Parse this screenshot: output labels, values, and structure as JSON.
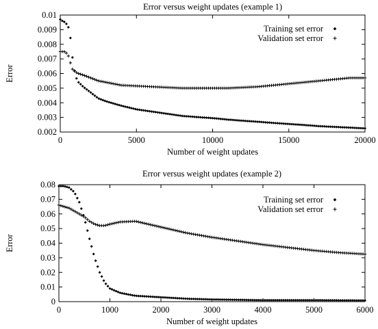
{
  "chart_data": [
    {
      "type": "scatter",
      "title": "Error versus weight updates (example 1)",
      "xlabel": "Number of weight updates",
      "ylabel": "Error",
      "xlim": [
        0,
        20000
      ],
      "ylim": [
        0.002,
        0.01
      ],
      "xticks": [
        0,
        5000,
        10000,
        15000,
        20000
      ],
      "yticks": [
        0.002,
        0.003,
        0.004,
        0.005,
        0.006,
        0.007,
        0.008,
        0.009,
        0.01
      ],
      "xtick_labels": [
        "0",
        "5000",
        "10000",
        "15000",
        "20000"
      ],
      "ytick_labels": [
        "0.002",
        "0.003",
        "0.004",
        "0.005",
        "0.006",
        "0.007",
        "0.008",
        "0.009",
        "0.01"
      ],
      "legend_position": "top-right",
      "series": [
        {
          "name": "Training set error",
          "marker": "diamond",
          "x": [
            0,
            100,
            200,
            300,
            400,
            500,
            600,
            700,
            800,
            900,
            1000,
            1200,
            1500,
            2000,
            2500,
            3000,
            4000,
            5000,
            6000,
            7000,
            8000,
            9000,
            10000,
            11000,
            12000,
            13000,
            14000,
            15000,
            16000,
            17000,
            18000,
            19000,
            20000
          ],
          "y": [
            0.0097,
            0.0096,
            0.0096,
            0.0095,
            0.0094,
            0.0093,
            0.0089,
            0.0082,
            0.0071,
            0.0064,
            0.0058,
            0.0054,
            0.0051,
            0.0047,
            0.0043,
            0.0041,
            0.0038,
            0.00355,
            0.0034,
            0.00325,
            0.0031,
            0.00302,
            0.00295,
            0.00285,
            0.00277,
            0.0027,
            0.00262,
            0.00255,
            0.00248,
            0.0024,
            0.00235,
            0.0023,
            0.00225
          ]
        },
        {
          "name": "Validation set error",
          "marker": "plus",
          "x": [
            0,
            100,
            200,
            300,
            400,
            500,
            600,
            700,
            800,
            900,
            1000,
            1200,
            1500,
            2000,
            2500,
            3000,
            4000,
            5000,
            6000,
            7000,
            8000,
            9000,
            10000,
            11000,
            12000,
            13000,
            14000,
            15000,
            16000,
            17000,
            18000,
            19000,
            20000
          ],
          "y": [
            0.0075,
            0.0075,
            0.0075,
            0.0075,
            0.0074,
            0.0073,
            0.007,
            0.0066,
            0.0063,
            0.0062,
            0.0061,
            0.006,
            0.0059,
            0.0057,
            0.0055,
            0.0054,
            0.0052,
            0.00515,
            0.0051,
            0.00505,
            0.005,
            0.005,
            0.005,
            0.005,
            0.00505,
            0.0051,
            0.0052,
            0.0053,
            0.0054,
            0.0055,
            0.0056,
            0.0057,
            0.0057
          ]
        }
      ]
    },
    {
      "type": "scatter",
      "title": "Error versus weight updates (example 2)",
      "xlabel": "Number of weight updates",
      "ylabel": "Error",
      "xlim": [
        0,
        6000
      ],
      "ylim": [
        0,
        0.08
      ],
      "xticks": [
        0,
        1000,
        2000,
        3000,
        4000,
        5000,
        6000
      ],
      "yticks": [
        0,
        0.01,
        0.02,
        0.03,
        0.04,
        0.05,
        0.06,
        0.07,
        0.08
      ],
      "xtick_labels": [
        "0",
        "1000",
        "2000",
        "3000",
        "4000",
        "5000",
        "6000"
      ],
      "ytick_labels": [
        "0",
        "0.01",
        "0.02",
        "0.03",
        "0.04",
        "0.05",
        "0.06",
        "0.07",
        "0.08"
      ],
      "legend_position": "top-right",
      "series": [
        {
          "name": "Training set error",
          "marker": "diamond",
          "x": [
            0,
            100,
            200,
            300,
            400,
            500,
            600,
            700,
            800,
            900,
            1000,
            1200,
            1500,
            2000,
            2500,
            3000,
            4000,
            5000,
            6000
          ],
          "y": [
            0.079,
            0.079,
            0.078,
            0.075,
            0.068,
            0.057,
            0.043,
            0.03,
            0.02,
            0.013,
            0.009,
            0.006,
            0.004,
            0.003,
            0.002,
            0.0015,
            0.001,
            0.001,
            0.0008
          ]
        },
        {
          "name": "Validation set error",
          "marker": "plus",
          "x": [
            0,
            100,
            200,
            300,
            400,
            500,
            600,
            700,
            800,
            900,
            1000,
            1200,
            1500,
            2000,
            2500,
            3000,
            3500,
            4000,
            4500,
            5000,
            5500,
            6000
          ],
          "y": [
            0.066,
            0.065,
            0.064,
            0.062,
            0.06,
            0.058,
            0.055,
            0.053,
            0.052,
            0.052,
            0.053,
            0.0545,
            0.055,
            0.051,
            0.047,
            0.044,
            0.0415,
            0.039,
            0.037,
            0.035,
            0.0335,
            0.0325
          ]
        }
      ]
    }
  ]
}
